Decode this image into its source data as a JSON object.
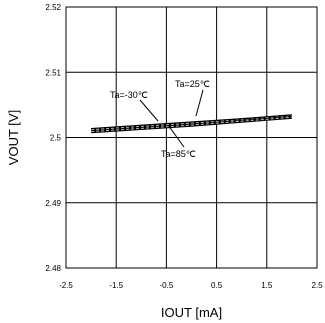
{
  "chart_data": {
    "type": "line",
    "xlabel": "IOUT [mA]",
    "ylabel": "VOUT [V]",
    "xlim": [
      -2.5,
      2.5
    ],
    "ylim": [
      2.48,
      2.52
    ],
    "x_ticks": [
      "-2.5",
      "-1.5",
      "-0.5",
      "0.5",
      "1.5",
      "2.5"
    ],
    "y_ticks": [
      "2.48",
      "2.49",
      "2.5",
      "2.51",
      "2.52"
    ],
    "grid": true,
    "series": [
      {
        "name": "Ta=-30℃",
        "x": [
          -2.0,
          -1.0,
          0.0,
          1.0,
          2.0
        ],
        "y": [
          2.501,
          2.5015,
          2.502,
          2.5026,
          2.5032
        ]
      },
      {
        "name": "Ta=25℃",
        "x": [
          -2.0,
          -1.0,
          0.0,
          1.0,
          2.0
        ],
        "y": [
          2.5012,
          2.5017,
          2.5022,
          2.5027,
          2.5033
        ]
      },
      {
        "name": "Ta=85℃",
        "x": [
          -2.0,
          -1.0,
          0.0,
          1.0,
          2.0
        ],
        "y": [
          2.5009,
          2.5014,
          2.5019,
          2.5025,
          2.5031
        ]
      }
    ],
    "annotations": [
      {
        "text": "Ta=-30℃",
        "series": "Ta=-30℃"
      },
      {
        "text": "Ta=25℃",
        "series": "Ta=25℃"
      },
      {
        "text": "Ta=85℃",
        "series": "Ta=85℃"
      }
    ]
  }
}
